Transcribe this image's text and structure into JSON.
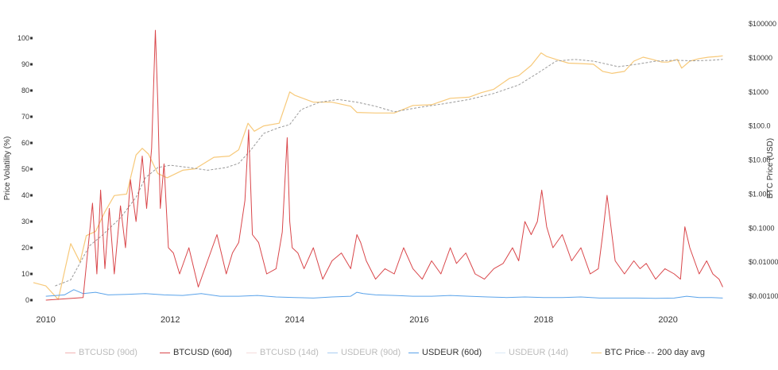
{
  "chart_data": {
    "type": "line",
    "ylabel": "Price Volatility (%)",
    "y2label": "BTC Price (USD)",
    "x_ticks": [
      "2010",
      "2012",
      "2014",
      "2016",
      "2018",
      "2020"
    ],
    "xlim": [
      2009.8,
      2020.95
    ],
    "y_ticks": [
      "0",
      "10",
      "20",
      "30",
      "40",
      "50",
      "60",
      "70",
      "80",
      "90",
      "100"
    ],
    "ylim": [
      0,
      100
    ],
    "y2_ticks": [
      "$0.001000",
      "$0.01000",
      "$0.1000",
      "$1.000",
      "$10.00",
      "$100.0",
      "$1000",
      "$10000",
      "$100000"
    ],
    "y2lim": [
      0.001,
      100000
    ],
    "y2_scale": "log",
    "grid": false,
    "legend_position": "bottom",
    "legend": [
      {
        "name": "BTCUSD (90d)",
        "color": "#f2b3b3",
        "visible": false,
        "dashed": false
      },
      {
        "name": "BTCUSD (60d)",
        "color": "#d9464a",
        "visible": true,
        "dashed": false
      },
      {
        "name": "BTCUSD (14d)",
        "color": "#f5dcdc",
        "visible": false,
        "dashed": false
      },
      {
        "name": "USDEUR (90d)",
        "color": "#a9cdf2",
        "visible": false,
        "dashed": false
      },
      {
        "name": "USDEUR (60d)",
        "color": "#5aa3ea",
        "visible": true,
        "dashed": false
      },
      {
        "name": "USDEUR (14d)",
        "color": "#dbe9f7",
        "visible": false,
        "dashed": false
      },
      {
        "name": "BTC Price",
        "color": "#f7c97a",
        "visible": true,
        "dashed": false
      },
      {
        "name": "200 day avg",
        "color": "#9a9a9a",
        "visible": true,
        "dashed": true
      }
    ],
    "series": [
      {
        "name": "BTCUSD (60d)",
        "axis": "left",
        "x": [
          2010.0,
          2010.6,
          2010.75,
          2010.82,
          2010.88,
          2010.95,
          2011.02,
          2011.1,
          2011.2,
          2011.28,
          2011.36,
          2011.45,
          2011.55,
          2011.62,
          2011.7,
          2011.76,
          2011.8,
          2011.84,
          2011.9,
          2011.97,
          2012.05,
          2012.15,
          2012.3,
          2012.45,
          2012.6,
          2012.75,
          2012.9,
          2013.0,
          2013.1,
          2013.2,
          2013.26,
          2013.32,
          2013.42,
          2013.55,
          2013.7,
          2013.8,
          2013.88,
          2013.92,
          2013.96,
          2014.05,
          2014.15,
          2014.3,
          2014.45,
          2014.6,
          2014.75,
          2014.9,
          2015.0,
          2015.06,
          2015.15,
          2015.3,
          2015.45,
          2015.6,
          2015.75,
          2015.9,
          2016.05,
          2016.2,
          2016.35,
          2016.5,
          2016.6,
          2016.75,
          2016.9,
          2017.05,
          2017.2,
          2017.35,
          2017.5,
          2017.6,
          2017.7,
          2017.8,
          2017.9,
          2017.97,
          2018.05,
          2018.15,
          2018.3,
          2018.45,
          2018.6,
          2018.75,
          2018.88,
          2018.95,
          2019.02,
          2019.15,
          2019.3,
          2019.45,
          2019.55,
          2019.65,
          2019.8,
          2019.95,
          2020.1,
          2020.2,
          2020.27,
          2020.35,
          2020.5,
          2020.62,
          2020.72,
          2020.82,
          2020.88
        ],
        "values": [
          0,
          1,
          37,
          10,
          42,
          12,
          35,
          10,
          36,
          20,
          46,
          30,
          55,
          35,
          58,
          103,
          75,
          35,
          52,
          20,
          18,
          10,
          20,
          5,
          15,
          25,
          10,
          18,
          22,
          38,
          65,
          25,
          22,
          10,
          12,
          26,
          62,
          30,
          20,
          18,
          12,
          20,
          8,
          15,
          18,
          12,
          25,
          22,
          15,
          8,
          12,
          10,
          20,
          12,
          8,
          15,
          10,
          20,
          14,
          18,
          10,
          8,
          12,
          14,
          20,
          15,
          30,
          25,
          30,
          42,
          28,
          20,
          25,
          15,
          20,
          10,
          12,
          25,
          40,
          15,
          10,
          15,
          12,
          14,
          8,
          12,
          10,
          8,
          28,
          20,
          10,
          15,
          10,
          8,
          5
        ]
      },
      {
        "name": "USDEUR (60d)",
        "axis": "left",
        "x": [
          2010.0,
          2010.3,
          2010.45,
          2010.6,
          2010.8,
          2011.0,
          2011.3,
          2011.6,
          2011.9,
          2012.2,
          2012.5,
          2012.8,
          2013.1,
          2013.4,
          2013.7,
          2014.0,
          2014.3,
          2014.6,
          2014.9,
          2015.0,
          2015.1,
          2015.3,
          2015.6,
          2015.9,
          2016.2,
          2016.5,
          2016.8,
          2017.1,
          2017.4,
          2017.7,
          2018.0,
          2018.3,
          2018.6,
          2018.9,
          2019.2,
          2019.5,
          2019.8,
          2020.1,
          2020.3,
          2020.5,
          2020.7,
          2020.88
        ],
        "values": [
          1.5,
          2.0,
          4.0,
          2.5,
          3.0,
          2.0,
          2.2,
          2.5,
          2.0,
          1.8,
          2.5,
          1.5,
          1.5,
          1.8,
          1.2,
          1.0,
          0.8,
          1.2,
          1.5,
          3.0,
          2.5,
          2.0,
          1.8,
          1.5,
          1.5,
          1.8,
          1.5,
          1.2,
          1.0,
          1.2,
          1.0,
          1.0,
          1.2,
          0.8,
          0.8,
          0.8,
          0.7,
          0.8,
          1.5,
          1.0,
          1.0,
          0.8
        ]
      },
      {
        "name": "BTC Price",
        "axis": "right",
        "x": [
          2009.8,
          2010.0,
          2010.2,
          2010.4,
          2010.55,
          2010.65,
          2010.8,
          2010.95,
          2011.1,
          2011.3,
          2011.45,
          2011.55,
          2011.65,
          2011.8,
          2011.95,
          2012.2,
          2012.4,
          2012.7,
          2012.95,
          2013.1,
          2013.25,
          2013.35,
          2013.5,
          2013.75,
          2013.92,
          2014.0,
          2014.3,
          2014.6,
          2014.9,
          2015.0,
          2015.3,
          2015.6,
          2015.9,
          2016.2,
          2016.5,
          2016.8,
          2017.0,
          2017.2,
          2017.45,
          2017.6,
          2017.8,
          2017.96,
          2018.05,
          2018.2,
          2018.4,
          2018.6,
          2018.8,
          2018.95,
          2019.1,
          2019.3,
          2019.45,
          2019.6,
          2019.75,
          2019.9,
          2020.0,
          2020.15,
          2020.22,
          2020.35,
          2020.5,
          2020.65,
          2020.8,
          2020.88
        ],
        "values": [
          0.0025,
          0.002,
          0.0008,
          0.035,
          0.01,
          0.06,
          0.08,
          0.3,
          0.9,
          1.0,
          14,
          22,
          15,
          4,
          3,
          5,
          5.5,
          12,
          13,
          20,
          120,
          70,
          100,
          120,
          1000,
          800,
          500,
          500,
          380,
          250,
          240,
          240,
          400,
          420,
          650,
          700,
          950,
          1200,
          2500,
          3000,
          6000,
          14000,
          11000,
          9000,
          7000,
          6800,
          6500,
          4000,
          3500,
          4000,
          8000,
          10500,
          9000,
          7500,
          7500,
          9000,
          5000,
          8000,
          9500,
          10500,
          11000,
          11500
        ]
      },
      {
        "name": "200 day avg",
        "axis": "right",
        "x": [
          2010.15,
          2010.4,
          2010.7,
          2010.9,
          2011.2,
          2011.45,
          2011.6,
          2011.8,
          2012.0,
          2012.3,
          2012.6,
          2012.9,
          2013.1,
          2013.3,
          2013.5,
          2013.75,
          2013.92,
          2014.1,
          2014.4,
          2014.7,
          2015.0,
          2015.3,
          2015.6,
          2016.0,
          2016.4,
          2016.8,
          2017.2,
          2017.6,
          2017.9,
          2018.2,
          2018.5,
          2018.8,
          2019.2,
          2019.5,
          2019.8,
          2020.1,
          2020.4,
          2020.7,
          2020.88
        ],
        "values": [
          0.002,
          0.003,
          0.03,
          0.06,
          0.2,
          0.8,
          3,
          6,
          7,
          6,
          5,
          6,
          8,
          20,
          60,
          90,
          110,
          300,
          500,
          600,
          500,
          380,
          260,
          350,
          450,
          600,
          900,
          1600,
          3500,
          8000,
          9000,
          8000,
          5500,
          6500,
          8000,
          8500,
          8200,
          8500,
          9000
        ]
      }
    ]
  }
}
